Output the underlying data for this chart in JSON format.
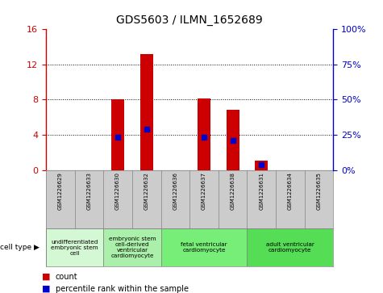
{
  "title": "GDS5603 / ILMN_1652689",
  "samples": [
    "GSM1226629",
    "GSM1226633",
    "GSM1226630",
    "GSM1226632",
    "GSM1226636",
    "GSM1226637",
    "GSM1226638",
    "GSM1226631",
    "GSM1226634",
    "GSM1226635"
  ],
  "counts": [
    0,
    0,
    8.0,
    13.2,
    0,
    8.1,
    6.8,
    1.1,
    0,
    0
  ],
  "percentile_ranks": [
    null,
    null,
    23.0,
    29.0,
    null,
    23.0,
    21.0,
    4.0,
    null,
    null
  ],
  "ylim_left": [
    0,
    16
  ],
  "ylim_right": [
    0,
    100
  ],
  "yticks_left": [
    0,
    4,
    8,
    12,
    16
  ],
  "yticks_right": [
    0,
    25,
    50,
    75,
    100
  ],
  "ytick_labels_left": [
    "0",
    "4",
    "8",
    "12",
    "16"
  ],
  "ytick_labels_right": [
    "0%",
    "25%",
    "50%",
    "75%",
    "100%"
  ],
  "bar_color": "#cc0000",
  "marker_color": "#0000cc",
  "cell_type_groups": [
    {
      "label": "undifferentiated\nembryonic stem\ncell",
      "indices": [
        0,
        1
      ],
      "color": "#d4f7d4"
    },
    {
      "label": "embryonic stem\ncell-derived\nventricular\ncardiomyocyte",
      "indices": [
        2,
        3
      ],
      "color": "#aaf0aa"
    },
    {
      "label": "fetal ventricular\ncardiomyocyte",
      "indices": [
        4,
        5,
        6
      ],
      "color": "#77ee77"
    },
    {
      "label": "adult ventricular\ncardiomyocyte",
      "indices": [
        7,
        8,
        9
      ],
      "color": "#55dd55"
    }
  ],
  "cell_type_label": "cell type",
  "legend_count_label": "count",
  "legend_percentile_label": "percentile rank within the sample",
  "sample_bg": "#cccccc",
  "bg_color": "#ffffff"
}
